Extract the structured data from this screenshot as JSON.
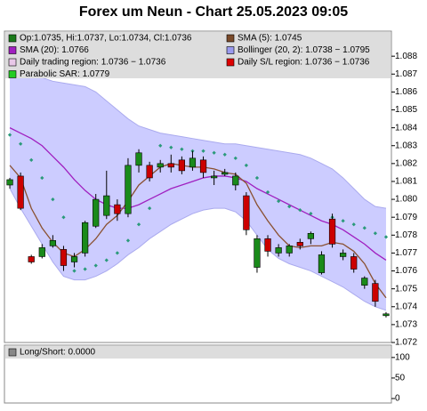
{
  "chart_data": [
    {
      "type": "candlestick",
      "title": "Forex um Neun - Chart 25.05.2023 09:05",
      "legend": [
        {
          "label": "Op:1.0735, Hi:1.0737, Lo:1.0734, Cl:1.0736",
          "color": "#1a7a1a"
        },
        {
          "label": "SMA (5): 1.0745",
          "color": "#7a4a2a"
        },
        {
          "label": "SMA (20): 1.0766",
          "color": "#a020c0"
        },
        {
          "label": "Bollinger (20, 2): 1.0738 − 1.0795",
          "color": "#9a9aee"
        },
        {
          "label": "Daily trading region: 1.0736 − 1.0736",
          "color": "#e8c8e8"
        },
        {
          "label": "Daily S/L region: 1.0736 − 1.0736",
          "color": "#dd0000"
        },
        {
          "label": "Parabolic SAR: 1.0779",
          "color": "#22cc22"
        }
      ],
      "ylim": [
        1.072,
        1.0894
      ],
      "yticks": [
        1.072,
        1.073,
        1.074,
        1.075,
        1.076,
        1.077,
        1.078,
        1.079,
        {
          "value": 1.08,
          "label": "1.080"
        },
        1.081,
        1.082,
        1.083,
        1.084,
        1.085,
        1.086,
        1.087,
        1.088
      ],
      "up_color": "#1a8a1a",
      "down_color": "#cc0000",
      "open": [
        1.0808,
        1.0813,
        1.0768,
        1.0768,
        1.0774,
        1.0772,
        1.0765,
        1.077,
        1.0785,
        1.0791,
        1.0797,
        1.0792,
        1.0819,
        1.0819,
        1.0818,
        1.082,
        1.0822,
        1.0818,
        1.0822,
        1.0812,
        1.0814,
        1.0808,
        1.0802,
        1.0762,
        1.0778,
        1.077,
        1.077,
        1.0776,
        1.0778,
        1.0759,
        1.0789,
        1.0768,
        1.0768,
        1.0752,
        1.0753,
        1.0735
      ],
      "high": [
        1.0812,
        1.0815,
        1.0769,
        1.0775,
        1.078,
        1.0774,
        1.077,
        1.0788,
        1.0803,
        1.0816,
        1.08,
        1.0823,
        1.0828,
        1.0821,
        1.0822,
        1.0825,
        1.0824,
        1.0827,
        1.0824,
        1.0816,
        1.0817,
        1.0815,
        1.0804,
        1.078,
        1.078,
        1.0775,
        1.0775,
        1.0778,
        1.0782,
        1.0771,
        1.0792,
        1.0772,
        1.077,
        1.0757,
        1.0755,
        1.0737
      ],
      "low": [
        1.0806,
        1.0794,
        1.0764,
        1.0767,
        1.0773,
        1.076,
        1.0762,
        1.0768,
        1.0784,
        1.0789,
        1.0788,
        1.079,
        1.0815,
        1.081,
        1.0815,
        1.0815,
        1.0814,
        1.0816,
        1.0812,
        1.0808,
        1.0813,
        1.0805,
        1.078,
        1.0759,
        1.0768,
        1.0768,
        1.0768,
        1.0772,
        1.0775,
        1.0758,
        1.0773,
        1.0766,
        1.0759,
        1.075,
        1.074,
        1.0734
      ],
      "close": [
        1.0811,
        1.0795,
        1.0765,
        1.0773,
        1.0777,
        1.0763,
        1.0768,
        1.0787,
        1.08,
        1.0802,
        1.0792,
        1.0819,
        1.0826,
        1.0812,
        1.082,
        1.0818,
        1.0816,
        1.0823,
        1.0815,
        1.0813,
        1.0815,
        1.0813,
        1.0783,
        1.0778,
        1.0771,
        1.0773,
        1.0774,
        1.0774,
        1.0781,
        1.0769,
        1.0775,
        1.077,
        1.0761,
        1.0756,
        1.0743,
        1.0736
      ],
      "band": {
        "color": "#ccccff",
        "edge": "#aaaaee",
        "upper": [
          1.0875,
          1.0872,
          1.087,
          1.0868,
          1.0866,
          1.0865,
          1.0864,
          1.0863,
          1.086,
          1.0855,
          1.085,
          1.0845,
          1.0841,
          1.0839,
          1.0837,
          1.0836,
          1.0835,
          1.0834,
          1.0833,
          1.0832,
          1.0831,
          1.0831,
          1.083,
          1.0829,
          1.0828,
          1.0827,
          1.0826,
          1.0825,
          1.0823,
          1.082,
          1.0817,
          1.0812,
          1.0806,
          1.08,
          1.0796,
          1.0795
        ],
        "lower": [
          1.0806,
          1.0795,
          1.0785,
          1.0775,
          1.0765,
          1.0757,
          1.0755,
          1.0755,
          1.0757,
          1.076,
          1.0764,
          1.0769,
          1.0773,
          1.0778,
          1.0782,
          1.0786,
          1.0789,
          1.0792,
          1.0794,
          1.0795,
          1.0795,
          1.0793,
          1.0788,
          1.078,
          1.0772,
          1.0767,
          1.0764,
          1.0762,
          1.076,
          1.0757,
          1.0754,
          1.0751,
          1.0747,
          1.0743,
          1.074,
          1.0738
        ]
      },
      "lines": [
        {
          "color": "#a020c0",
          "values": [
            1.084,
            1.0837,
            1.0834,
            1.083,
            1.0824,
            1.0818,
            1.0811,
            1.0805,
            1.08,
            1.0797,
            1.0795,
            1.0795,
            1.0797,
            1.08,
            1.0803,
            1.0806,
            1.0808,
            1.081,
            1.0812,
            1.0813,
            1.0813,
            1.0812,
            1.081,
            1.0806,
            1.0803,
            1.08,
            1.0797,
            1.0794,
            1.0791,
            1.0788,
            1.0786,
            1.0783,
            1.0779,
            1.0775,
            1.077,
            1.0766
          ]
        },
        {
          "color": "#8a5030",
          "values": [
            1.0819,
            1.0812,
            1.0795,
            1.0784,
            1.0776,
            1.077,
            1.0768,
            1.0772,
            1.0778,
            1.0786,
            1.0791,
            1.0799,
            1.0808,
            1.0813,
            1.0818,
            1.082,
            1.0819,
            1.0818,
            1.0818,
            1.0817,
            1.0815,
            1.0814,
            1.0809,
            1.0797,
            1.0788,
            1.078,
            1.0774,
            1.0773,
            1.0774,
            1.0774,
            1.0776,
            1.0775,
            1.0771,
            1.0764,
            1.0753,
            1.0745
          ]
        }
      ],
      "dots": {
        "color": "#2a9a7a",
        "values": [
          1.0836,
          1.0831,
          1.0822,
          1.0812,
          1.08,
          1.079,
          1.076,
          1.0761,
          1.0763,
          1.0766,
          1.077,
          1.0777,
          1.0786,
          1.0795,
          1.083,
          1.0829,
          1.0828,
          1.0827,
          1.0827,
          1.0826,
          1.0825,
          1.0823,
          1.0819,
          1.0812,
          1.0804,
          1.0799,
          1.0796,
          1.0794,
          1.0792,
          1.076,
          1.079,
          1.0788,
          1.0786,
          1.0784,
          1.0781,
          1.0779
        ]
      }
    },
    {
      "type": "line",
      "legend": [
        {
          "label": "Long/Short: 0.0000",
          "color": "#888888"
        }
      ],
      "ylim": [
        0,
        130
      ],
      "yticks": [
        0,
        50,
        100
      ]
    }
  ]
}
